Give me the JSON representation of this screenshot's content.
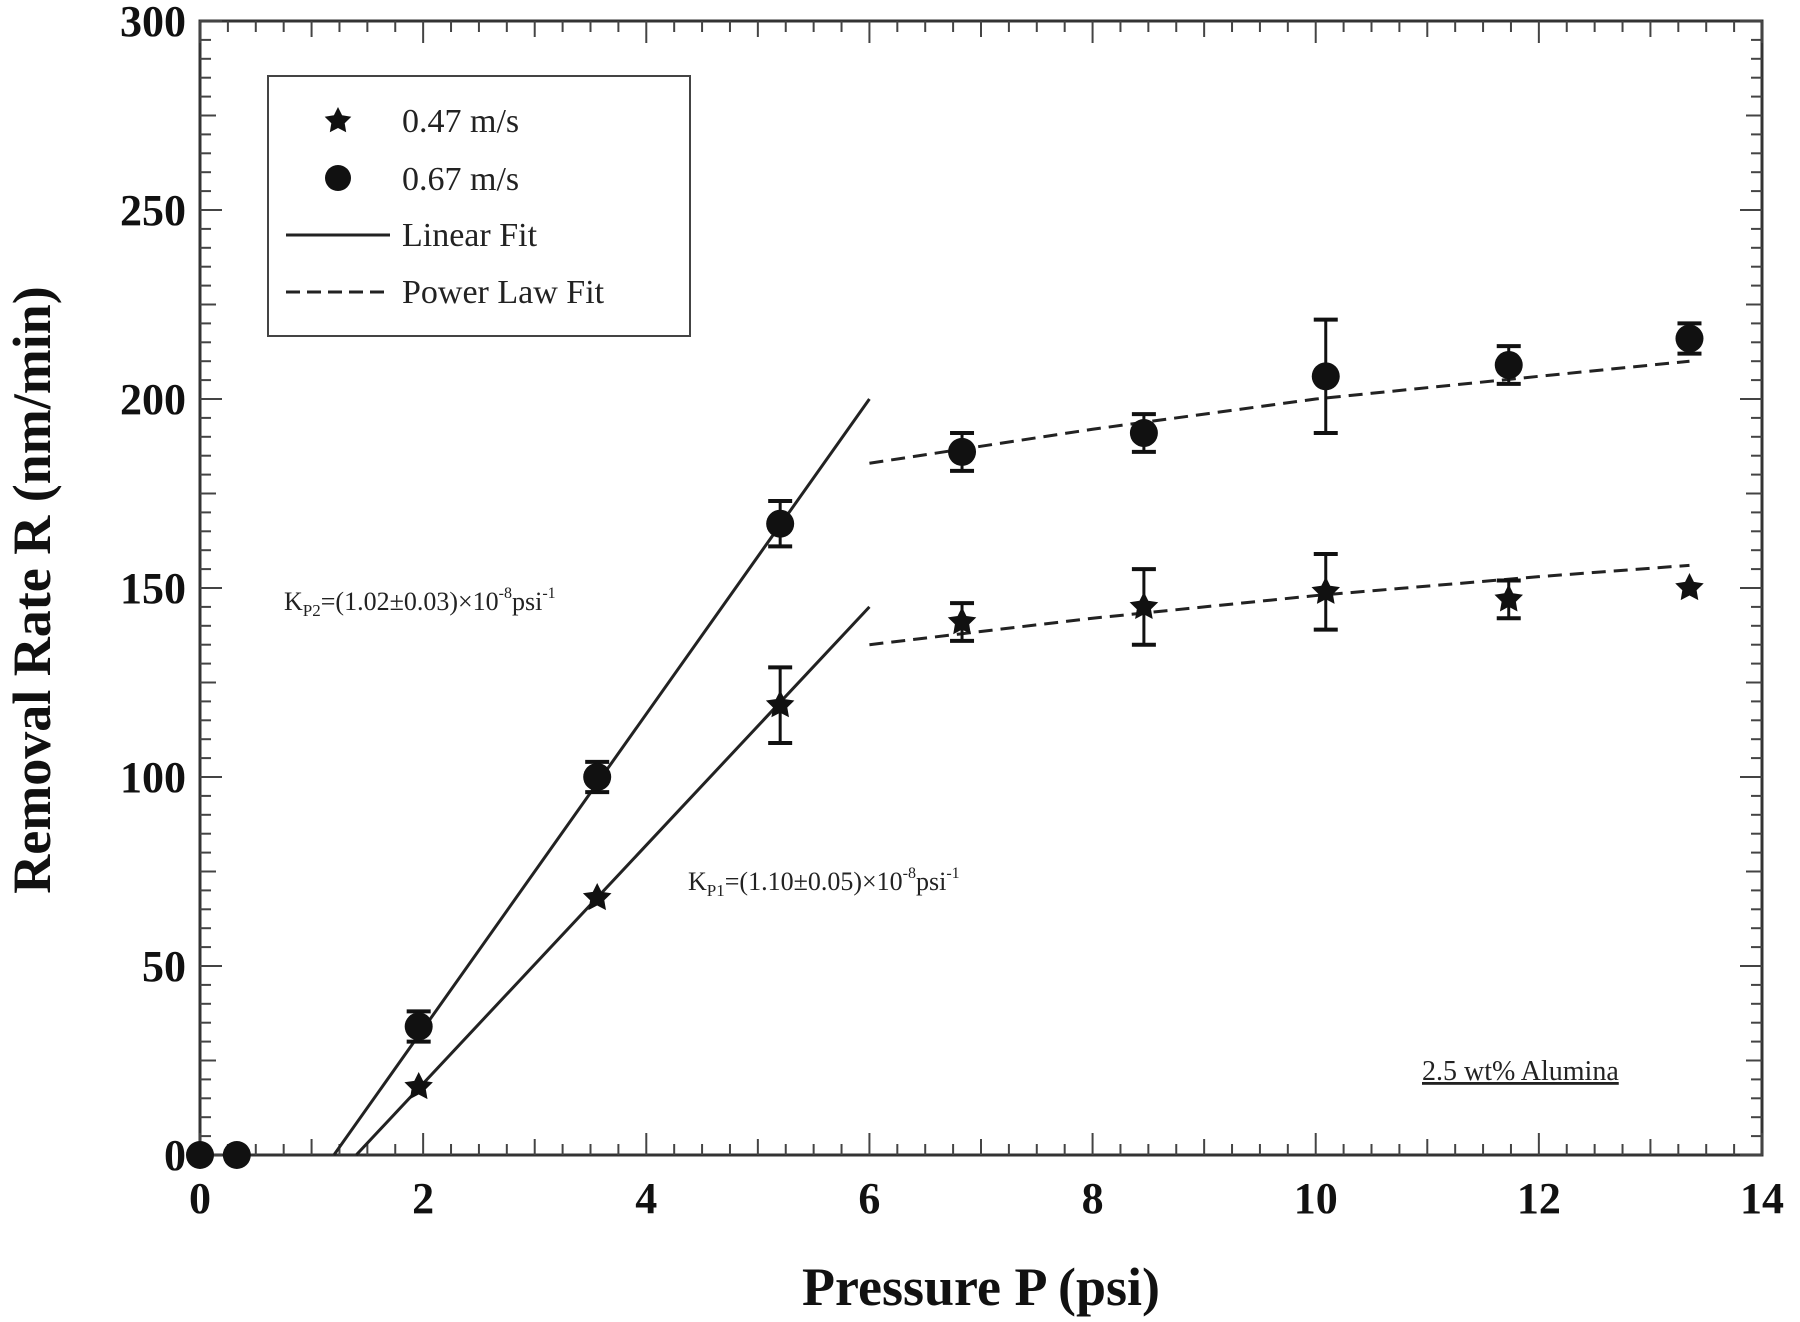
{
  "chart_data": {
    "type": "scatter",
    "title": "",
    "xlabel": "Pressure P (psi)",
    "ylabel": "Removal Rate R (nm/min)",
    "xlim": [
      0,
      14
    ],
    "ylim": [
      0,
      300
    ],
    "xticks": [
      0,
      2,
      4,
      6,
      8,
      10,
      12,
      14
    ],
    "yticks": [
      0,
      50,
      100,
      150,
      200,
      250,
      300
    ],
    "grid": false,
    "legend_position": "upper left",
    "legend": [
      {
        "label": "0.47 m/s",
        "marker": "star"
      },
      {
        "label": "0.67 m/s",
        "marker": "circle"
      },
      {
        "label": "Linear Fit",
        "style": "solid"
      },
      {
        "label": "Power Law Fit",
        "style": "dashed"
      }
    ],
    "series": [
      {
        "name": "0.47 m/s",
        "marker": "star",
        "x": [
          1.96,
          3.56,
          5.2,
          6.83,
          8.46,
          10.09,
          11.73,
          13.35
        ],
        "y": [
          18,
          68,
          119,
          141,
          145,
          149,
          147,
          150
        ],
        "err": [
          0,
          0,
          10,
          5,
          10,
          10,
          5,
          0
        ]
      },
      {
        "name": "0.67 m/s",
        "marker": "circle",
        "x": [
          0,
          0.33,
          1.96,
          3.56,
          5.2,
          6.83,
          8.46,
          10.09,
          11.73,
          13.35
        ],
        "y": [
          0,
          0,
          34,
          100,
          167,
          186,
          191,
          206,
          209,
          216
        ],
        "err": [
          0,
          0,
          4,
          4,
          6,
          5,
          5,
          15,
          5,
          4
        ]
      }
    ],
    "fits": [
      {
        "name": "Linear Fit (0.67 m/s)",
        "style": "solid",
        "x": [
          1.2,
          6.0
        ],
        "y": [
          0,
          200
        ]
      },
      {
        "name": "Linear Fit (0.47 m/s)",
        "style": "solid",
        "x": [
          1.4,
          6.0
        ],
        "y": [
          0,
          145
        ]
      },
      {
        "name": "Power Law Fit (0.67 m/s)",
        "style": "dashed",
        "x": [
          6.0,
          8.0,
          10.0,
          12.0,
          13.35
        ],
        "y": [
          183,
          192,
          200,
          206,
          210
        ]
      },
      {
        "name": "Power Law Fit (0.47 m/s)",
        "style": "dashed",
        "x": [
          6.0,
          8.0,
          10.0,
          12.0,
          13.35
        ],
        "y": [
          135,
          142,
          148,
          153,
          156
        ]
      }
    ],
    "annotations": [
      {
        "text": "K_P2=(1.02±0.03)×10^-8 psi^-1",
        "x": 0.35,
        "y": 148
      },
      {
        "text": "K_P1=(1.10±0.05)×10^-8 psi^-1",
        "x": 4.35,
        "y": 72
      },
      {
        "text": "2.5 wt% Alumina",
        "x": 10.9,
        "y": 22
      }
    ]
  },
  "labels": {
    "xlabel": "Pressure P (psi)",
    "ylabel": "Removal Rate R (nm/min)",
    "legend_047": "0.47 m/s",
    "legend_067": "0.67 m/s",
    "legend_linear": "Linear Fit",
    "legend_power": "Power Law Fit",
    "kp2_main": "K",
    "kp2_sub": "P2",
    "kp2_rest": "=(1.02±0.03)×10",
    "kp2_exp": "-8",
    "kp2_unit": "psi",
    "kp2_unit_exp": "-1",
    "kp1_main": "K",
    "kp1_sub": "P1",
    "kp1_rest": "=(1.10±0.05)×10",
    "kp1_exp": "-8",
    "kp1_unit": "psi",
    "kp1_unit_exp": "-1",
    "note": "2.5 wt% Alumina"
  },
  "colors": {
    "ink": "#111111",
    "frame": "#333333",
    "background": "#ffffff"
  }
}
